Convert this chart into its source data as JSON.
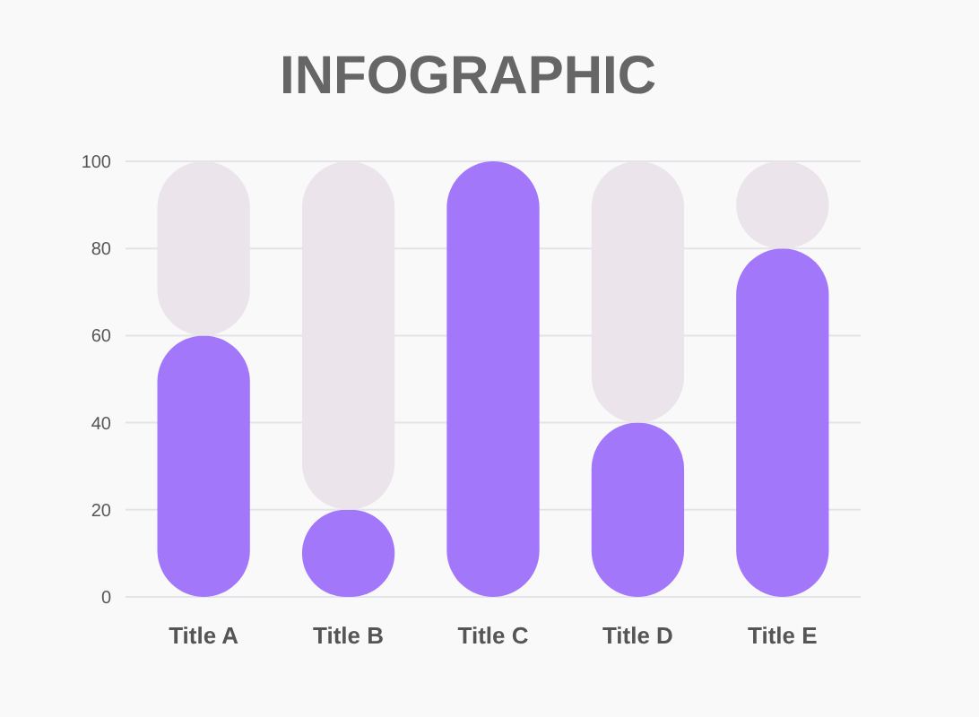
{
  "chart_data": {
    "type": "bar",
    "title": "INFOGRAPHIC",
    "categories": [
      "Title A",
      "Title B",
      "Title C",
      "Title D",
      "Title E"
    ],
    "stacked": true,
    "series": [
      {
        "color": "#a277fa",
        "values": [
          60,
          20,
          100,
          40,
          80
        ]
      },
      {
        "color": "#ebe4ea",
        "values": [
          40,
          80,
          0,
          60,
          20
        ]
      }
    ],
    "ylim": [
      0,
      100
    ],
    "yticks": [
      0,
      20,
      40,
      60,
      80,
      100
    ],
    "grid": "y"
  }
}
